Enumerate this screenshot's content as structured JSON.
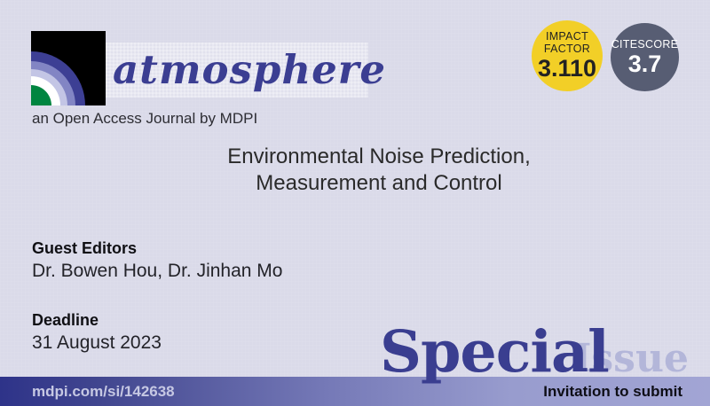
{
  "journal": {
    "name": "atmosphere",
    "tagline": "an Open Access Journal by MDPI"
  },
  "badges": {
    "impact_factor": {
      "label_line1": "IMPACT",
      "label_line2": "FACTOR",
      "value": "3.110",
      "bg_color": "#f2cf27",
      "text_color": "#222222"
    },
    "citescore": {
      "label": "CITESCORE",
      "value": "3.7",
      "bg_color": "#575d73",
      "text_color": "#ffffff"
    }
  },
  "special_issue": {
    "title_line1": "Environmental Noise Prediction,",
    "title_line2": "Measurement and Control",
    "guest_editors_label": "Guest Editors",
    "guest_editors": "Dr. Bowen Hou, Dr. Jinhan Mo",
    "deadline_label": "Deadline",
    "deadline": "31 August 2023"
  },
  "watermark": {
    "word1": "Special",
    "word2": "Issue"
  },
  "footer": {
    "url": "mdpi.com/si/142638",
    "cta": "Invitation to submit"
  },
  "colors": {
    "background": "#dadae9",
    "brand_indigo": "#3b3e92",
    "logo_arc_outer": "#3d3f94",
    "logo_arc_purple": "#8285c4",
    "logo_arc_lavender": "#c3c5e5",
    "logo_arc_white": "#ffffff",
    "logo_arc_green": "#008540",
    "watermark_light": "#b3b6d9",
    "footer_gradient_left": "#2e3389",
    "footer_gradient_right": "#a2a5d4"
  }
}
